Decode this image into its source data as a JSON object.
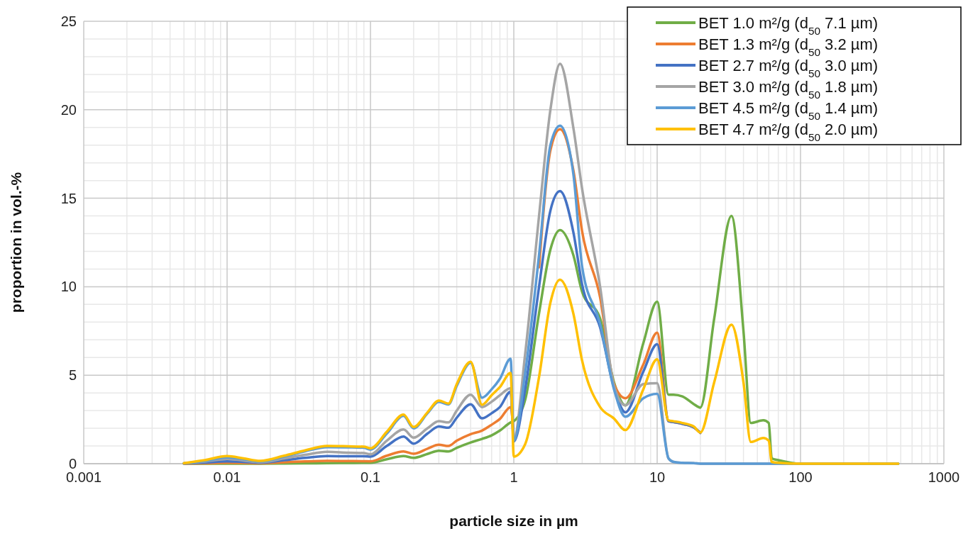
{
  "chart_data": {
    "type": "line",
    "xlabel": "particle size in µm",
    "ylabel": "proportion in vol.-%",
    "log": "x",
    "xlim": [
      0.001,
      1000
    ],
    "xticks": [
      0.001,
      0.01,
      0.1,
      1,
      10,
      100,
      1000
    ],
    "ylim": [
      0,
      25
    ],
    "yticks": [
      0,
      5,
      10,
      15,
      20,
      25
    ],
    "grid": true,
    "legend": "top right",
    "marker": "none",
    "line_style": "solid",
    "x": [
      0.005,
      0.007,
      0.01,
      0.013,
      0.017,
      0.025,
      0.035,
      0.05,
      0.07,
      0.09,
      0.1,
      0.13,
      0.17,
      0.2,
      0.25,
      0.3,
      0.35,
      0.4,
      0.5,
      0.6,
      0.7,
      0.8,
      0.95,
      1,
      1.2,
      1.5,
      1.8,
      2.1,
      2.6,
      3,
      4,
      5,
      6,
      8,
      10,
      12,
      13,
      15,
      18,
      20,
      25,
      33,
      40,
      45,
      55,
      60,
      63,
      70,
      100,
      480
    ],
    "series": [
      {
        "name": "BET 1.0 m²/g (d$_{50}$ 7.1 µm)",
        "color": "#70ad47",
        "values": [
          0,
          0,
          0,
          0,
          0,
          0.01,
          0.02,
          0.03,
          0.04,
          0.05,
          0.05,
          0.25,
          0.43,
          0.33,
          0.55,
          0.73,
          0.69,
          0.9,
          1.2,
          1.4,
          1.6,
          1.87,
          2.33,
          2.4,
          3.6,
          8.5,
          12.1,
          13.2,
          11.8,
          9.7,
          8.2,
          4.6,
          3.3,
          6.8,
          9.15,
          3.9,
          3.9,
          3.8,
          3.37,
          3.17,
          8.2,
          14.0,
          7.5,
          2.3,
          2.45,
          2.3,
          0.3,
          0.2,
          0,
          0
        ]
      },
      {
        "name": "BET 1.3 m²/g (d$_{50}$ 3.2 µm)",
        "color": "#ed7d31",
        "values": [
          0,
          0.02,
          0.05,
          0.04,
          0.02,
          0.08,
          0.13,
          0.16,
          0.15,
          0.14,
          0.13,
          0.45,
          0.69,
          0.56,
          0.85,
          1.07,
          1.0,
          1.3,
          1.67,
          1.87,
          2.2,
          2.53,
          3.2,
          1.5,
          null,
          11.1,
          17.7,
          18.9,
          16.6,
          13.1,
          9.4,
          4.5,
          3.7,
          5.6,
          7.4,
          2.4,
          2.35,
          2.25,
          2.05,
          1.74,
          null,
          null,
          null,
          null,
          null,
          null,
          null,
          null,
          null,
          null
        ]
      },
      {
        "name": "BET 2.7 m²/g (d$_{50}$ 3.0 µm)",
        "color": "#4472c4",
        "values": [
          0.01,
          0.06,
          0.13,
          0.1,
          0.05,
          0.2,
          0.33,
          0.43,
          0.42,
          0.42,
          0.4,
          1.0,
          1.53,
          1.13,
          1.7,
          2.1,
          2.03,
          2.6,
          3.36,
          2.56,
          2.85,
          3.2,
          4.07,
          1.26,
          4.2,
          10.0,
          14.3,
          15.4,
          13.1,
          10.1,
          7.7,
          4.3,
          2.9,
          5.2,
          6.75,
          2.4,
          2.35,
          2.25,
          2.05,
          1.74,
          null,
          null,
          null,
          null,
          null,
          null,
          null,
          null,
          null,
          null
        ]
      },
      {
        "name": "BET 3.0 m²/g (d$_{50}$ 1.8 µm)",
        "color": "#a5a5a5",
        "values": [
          0.02,
          0.12,
          0.27,
          0.18,
          0.08,
          0.3,
          0.5,
          0.67,
          0.62,
          0.6,
          0.53,
          1.3,
          1.93,
          1.47,
          2.0,
          2.4,
          2.33,
          3.0,
          3.9,
          3.2,
          3.5,
          3.87,
          4.27,
          1.4,
          6.2,
          14.0,
          20.0,
          22.6,
          19.0,
          15.5,
          10.0,
          4.4,
          3.3,
          4.5,
          4.55,
          0.3,
          0.1,
          0.05,
          0.03,
          0,
          0,
          0,
          0,
          0,
          0,
          0,
          0,
          0,
          0,
          0
        ]
      },
      {
        "name": "BET 4.5 m²/g (d$_{50}$ 1.4 µm)",
        "color": "#5b9bd5",
        "values": [
          0.02,
          0.15,
          0.35,
          0.25,
          0.12,
          0.4,
          0.7,
          0.93,
          0.92,
          0.9,
          0.8,
          1.7,
          2.7,
          2.0,
          2.85,
          3.5,
          3.35,
          4.4,
          5.7,
          3.73,
          4.2,
          4.8,
          5.93,
          1.3,
          5.1,
          11.8,
          18.0,
          19.1,
          16.4,
          11.1,
          7.9,
          4.2,
          2.65,
          3.7,
          3.95,
          0.3,
          0.1,
          0.05,
          0.03,
          0,
          0,
          0,
          0,
          0,
          0,
          0,
          0,
          0,
          0,
          0
        ]
      },
      {
        "name": "BET 4.7 m²/g (d$_{50}$ 2.0 µm)",
        "color": "#ffc000",
        "values": [
          0.03,
          0.2,
          0.43,
          0.3,
          0.16,
          0.45,
          0.75,
          1.0,
          0.98,
          0.96,
          0.87,
          1.8,
          2.77,
          2.07,
          2.9,
          3.57,
          3.4,
          4.5,
          5.76,
          3.33,
          3.87,
          4.33,
          5.13,
          0.4,
          1.1,
          4.9,
          9.1,
          10.4,
          8.5,
          5.8,
          3.2,
          2.55,
          1.9,
          4.2,
          5.9,
          2.45,
          2.4,
          2.3,
          2.1,
          1.76,
          4.6,
          7.85,
          4.6,
          1.23,
          1.45,
          1.3,
          0.1,
          0.05,
          0,
          0
        ]
      }
    ]
  }
}
